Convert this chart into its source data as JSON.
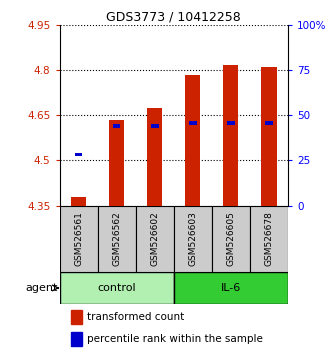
{
  "title": "GDS3773 / 10412258",
  "samples": [
    "GSM526561",
    "GSM526562",
    "GSM526602",
    "GSM526603",
    "GSM526605",
    "GSM526678"
  ],
  "groups": [
    "control",
    "control",
    "control",
    "IL-6",
    "IL-6",
    "IL-6"
  ],
  "red_bottom": [
    4.35,
    4.35,
    4.35,
    4.35,
    4.35,
    4.35
  ],
  "red_top": [
    4.38,
    4.635,
    4.675,
    4.785,
    4.815,
    4.81
  ],
  "blue_val": [
    4.52,
    4.615,
    4.615,
    4.625,
    4.625,
    4.625
  ],
  "ylim_left": [
    4.35,
    4.95
  ],
  "ylim_right": [
    0,
    100
  ],
  "yticks_left": [
    4.35,
    4.5,
    4.65,
    4.8,
    4.95
  ],
  "yticks_right": [
    0,
    25,
    50,
    75,
    100
  ],
  "ytick_labels_left": [
    "4.35",
    "4.5",
    "4.65",
    "4.8",
    "4.95"
  ],
  "ytick_labels_right": [
    "0",
    "25",
    "50",
    "75",
    "100%"
  ],
  "group_colors": {
    "control": "#b2f0b2",
    "IL-6": "#33cc33"
  },
  "red_color": "#cc2200",
  "blue_color": "#0000cc",
  "bar_width": 0.4,
  "legend_items": [
    "transformed count",
    "percentile rank within the sample"
  ],
  "background_color": "#ffffff",
  "plot_bg": "#ffffff",
  "sample_area_color": "#cccccc"
}
